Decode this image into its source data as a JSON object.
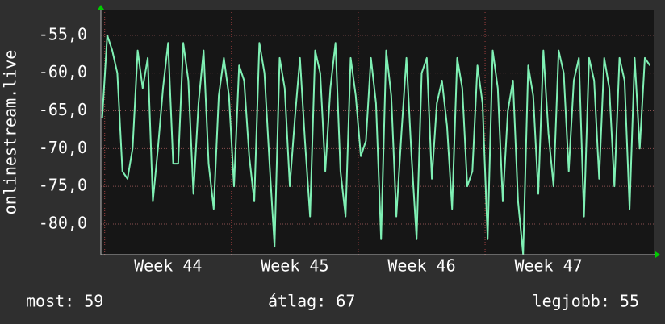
{
  "chart_data": {
    "type": "line",
    "y_label": "onlinestream.live",
    "x": [
      43.98,
      44.02,
      44.06,
      44.1,
      44.14,
      44.18,
      44.22,
      44.26,
      44.3,
      44.34,
      44.38,
      44.42,
      44.46,
      44.5,
      44.54,
      44.58,
      44.62,
      44.66,
      44.7,
      44.74,
      44.78,
      44.82,
      44.86,
      44.9,
      44.94,
      44.98,
      45.02,
      45.06,
      45.1,
      45.14,
      45.18,
      45.22,
      45.26,
      45.3,
      45.34,
      45.38,
      45.42,
      45.46,
      45.5,
      45.54,
      45.58,
      45.62,
      45.66,
      45.7,
      45.74,
      45.78,
      45.82,
      45.86,
      45.9,
      45.94,
      45.98,
      46.02,
      46.06,
      46.1,
      46.14,
      46.18,
      46.22,
      46.26,
      46.3,
      46.34,
      46.38,
      46.42,
      46.46,
      46.5,
      46.54,
      46.58,
      46.62,
      46.66,
      46.7,
      46.74,
      46.78,
      46.82,
      46.86,
      46.9,
      46.94,
      46.98,
      47.02,
      47.06,
      47.1,
      47.14,
      47.18,
      47.22,
      47.26,
      47.3,
      47.34,
      47.38,
      47.42,
      47.46,
      47.5,
      47.54,
      47.58,
      47.62,
      47.66,
      47.7,
      47.74,
      47.78,
      47.82,
      47.86,
      47.9,
      47.94,
      47.98,
      48.02,
      48.06,
      48.1,
      48.14,
      48.18,
      48.22,
      48.26,
      48.3
    ],
    "series": [
      {
        "color": "#7ff0b4",
        "values": [
          -66,
          -55,
          -57,
          -60,
          -73,
          -74,
          -70,
          -57,
          -62,
          -58,
          -77,
          -70,
          -62,
          -56,
          -72,
          -72,
          -56,
          -61,
          -76,
          -64,
          -57,
          -72,
          -78,
          -63,
          -58,
          -63,
          -75,
          -59,
          -61,
          -71,
          -77,
          -56,
          -60,
          -72,
          -83,
          -58,
          -62,
          -75,
          -66,
          -58,
          -69,
          -79,
          -57,
          -60,
          -73,
          -62,
          -56,
          -73,
          -79,
          -58,
          -63,
          -71,
          -69,
          -58,
          -64,
          -82,
          -57,
          -63,
          -79,
          -68,
          -58,
          -71,
          -82,
          -60,
          -58,
          -74,
          -64,
          -61,
          -67,
          -78,
          -58,
          -62,
          -75,
          -73,
          -59,
          -64,
          -82,
          -57,
          -62,
          -77,
          -65,
          -61,
          -77,
          -84,
          -59,
          -63,
          -76,
          -57,
          -68,
          -75,
          -57,
          -60,
          -73,
          -61,
          -58,
          -79,
          -58,
          -61,
          -74,
          -58,
          -62,
          -75,
          -58,
          -61,
          -78,
          -58,
          -70,
          -58,
          -59
        ]
      }
    ],
    "xlim": [
      43.97,
      48.33
    ],
    "xticks": [
      {
        "value": 44,
        "label": "Week 44"
      },
      {
        "value": 45,
        "label": "Week 45"
      },
      {
        "value": 46,
        "label": "Week 46"
      },
      {
        "value": 47,
        "label": "Week 47"
      }
    ],
    "ylim": [
      -84.06,
      -51.6
    ],
    "yticks": [
      {
        "value": -80,
        "label": "-80,0"
      },
      {
        "value": -75,
        "label": "-75,0"
      },
      {
        "value": -70,
        "label": "-70,0"
      },
      {
        "value": -65,
        "label": "-65,0"
      },
      {
        "value": -60,
        "label": "-60,0"
      },
      {
        "value": -55,
        "label": "-55,0"
      }
    ],
    "grid": true,
    "stats": [
      "most: 59",
      "átlag: 67",
      "legjobb: 55"
    ]
  }
}
